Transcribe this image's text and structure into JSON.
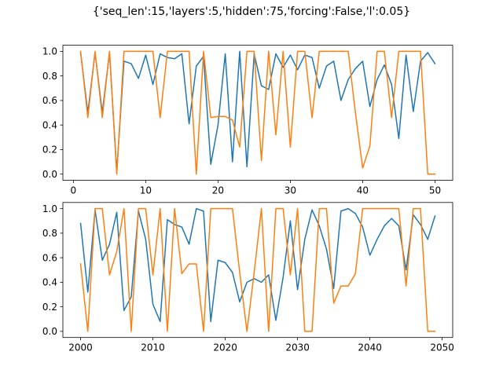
{
  "figure": {
    "title": "{'seq_len':15,'layers':5,'hidden':75,'forcing':False,'l':0.05}"
  },
  "colors": {
    "series_1": "#1f77b4",
    "series_2": "#ff7f0e"
  },
  "chart_data": [
    {
      "type": "line",
      "xlim": [
        -1.45,
        52.45
      ],
      "ylim": [
        -0.05,
        1.05
      ],
      "xticks": [
        0,
        10,
        20,
        30,
        40,
        50
      ],
      "yticks": [
        0.0,
        0.2,
        0.4,
        0.6,
        0.8,
        1.0
      ],
      "xtick_labels": [
        "0",
        "10",
        "20",
        "30",
        "40",
        "50"
      ],
      "ytick_labels": [
        "0.0",
        "0.2",
        "0.4",
        "0.6",
        "0.8",
        "1.0"
      ],
      "x": [
        1,
        2,
        3,
        4,
        5,
        6,
        7,
        8,
        9,
        10,
        11,
        12,
        13,
        14,
        15,
        16,
        17,
        18,
        19,
        20,
        21,
        22,
        23,
        24,
        25,
        26,
        27,
        28,
        29,
        30,
        31,
        32,
        33,
        34,
        35,
        36,
        37,
        38,
        39,
        40,
        41,
        42,
        43,
        44,
        45,
        46,
        47,
        48,
        49,
        50
      ],
      "series": [
        {
          "color": "#1f77b4",
          "values": [
            0.99,
            0.5,
            0.99,
            0.5,
            0.99,
            0.02,
            0.92,
            0.9,
            0.78,
            0.97,
            0.73,
            0.98,
            0.95,
            0.94,
            0.98,
            0.41,
            0.88,
            0.96,
            0.08,
            0.4,
            0.98,
            0.1,
            1.0,
            0.06,
            0.98,
            0.72,
            0.69,
            0.98,
            0.87,
            0.97,
            0.85,
            0.97,
            0.95,
            0.7,
            0.88,
            0.92,
            0.6,
            0.77,
            0.86,
            0.92,
            0.55,
            0.77,
            0.89,
            0.73,
            0.29,
            0.97,
            0.51,
            0.92,
            0.99,
            0.9
          ]
        },
        {
          "color": "#ff7f0e",
          "values": [
            1.0,
            0.46,
            1.0,
            0.46,
            1.0,
            0.0,
            1.0,
            1.0,
            1.0,
            1.0,
            1.0,
            0.46,
            1.0,
            1.0,
            1.0,
            1.0,
            0.0,
            1.0,
            0.46,
            0.47,
            0.47,
            0.44,
            0.22,
            1.0,
            1.0,
            0.11,
            1.0,
            0.32,
            1.0,
            0.22,
            1.0,
            1.0,
            0.46,
            1.0,
            1.0,
            1.0,
            1.0,
            1.0,
            0.5,
            0.05,
            0.23,
            1.0,
            1.0,
            0.46,
            1.0,
            1.0,
            1.0,
            1.0,
            0.0,
            0.0
          ]
        }
      ]
    },
    {
      "type": "line",
      "xlim": [
        1997.55,
        2051.45
      ],
      "ylim": [
        -0.05,
        1.05
      ],
      "xticks": [
        2000,
        2010,
        2020,
        2030,
        2040,
        2050
      ],
      "yticks": [
        0.0,
        0.2,
        0.4,
        0.6,
        0.8,
        1.0
      ],
      "xtick_labels": [
        "2000",
        "2010",
        "2020",
        "2030",
        "2040",
        "2050"
      ],
      "ytick_labels": [
        "0.0",
        "0.2",
        "0.4",
        "0.6",
        "0.8",
        "1.0"
      ],
      "x": [
        2000,
        2001,
        2002,
        2003,
        2004,
        2005,
        2006,
        2007,
        2008,
        2009,
        2010,
        2011,
        2012,
        2013,
        2014,
        2015,
        2016,
        2017,
        2018,
        2019,
        2020,
        2021,
        2022,
        2023,
        2024,
        2025,
        2026,
        2027,
        2028,
        2029,
        2030,
        2031,
        2032,
        2033,
        2034,
        2035,
        2036,
        2037,
        2038,
        2039,
        2040,
        2041,
        2042,
        2043,
        2044,
        2045,
        2046,
        2047,
        2048,
        2049
      ],
      "series": [
        {
          "color": "#1f77b4",
          "values": [
            0.88,
            0.32,
            0.99,
            0.58,
            0.71,
            0.97,
            0.17,
            0.28,
            0.98,
            0.75,
            0.22,
            0.08,
            0.91,
            0.87,
            0.85,
            0.71,
            1.0,
            0.98,
            0.08,
            0.58,
            0.56,
            0.48,
            0.24,
            0.4,
            0.43,
            0.4,
            0.46,
            0.09,
            0.44,
            0.9,
            0.34,
            0.75,
            0.99,
            0.86,
            0.67,
            0.35,
            0.98,
            1.0,
            0.96,
            0.85,
            0.62,
            0.75,
            0.86,
            0.92,
            0.86,
            0.5,
            0.95,
            0.87,
            0.75,
            0.94
          ]
        },
        {
          "color": "#ff7f0e",
          "values": [
            0.55,
            0.0,
            1.0,
            1.0,
            0.46,
            0.65,
            1.0,
            0.0,
            1.0,
            1.0,
            0.46,
            1.0,
            0.0,
            1.0,
            0.47,
            0.55,
            0.55,
            0.0,
            1.0,
            1.0,
            1.0,
            1.0,
            0.48,
            0.0,
            0.48,
            1.0,
            0.0,
            1.0,
            1.0,
            0.46,
            1.0,
            0.0,
            0.0,
            1.0,
            1.0,
            0.23,
            0.37,
            0.37,
            0.47,
            1.0,
            1.0,
            1.0,
            1.0,
            1.0,
            1.0,
            0.37,
            1.0,
            1.0,
            0.0,
            0.0
          ]
        }
      ]
    }
  ]
}
